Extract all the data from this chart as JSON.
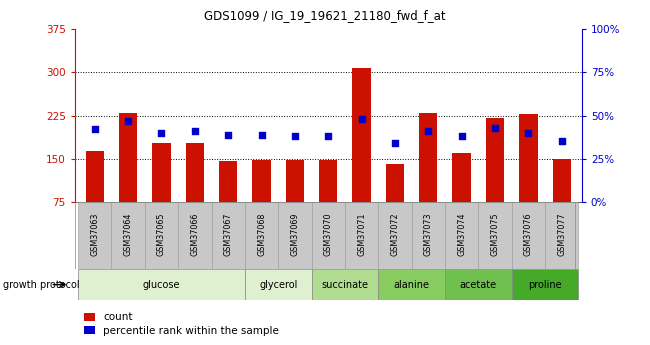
{
  "title": "GDS1099 / IG_19_19621_21180_fwd_f_at",
  "samples": [
    "GSM37063",
    "GSM37064",
    "GSM37065",
    "GSM37066",
    "GSM37067",
    "GSM37068",
    "GSM37069",
    "GSM37070",
    "GSM37071",
    "GSM37072",
    "GSM37073",
    "GSM37074",
    "GSM37075",
    "GSM37076",
    "GSM37077"
  ],
  "count_values": [
    163,
    230,
    178,
    178,
    146,
    147,
    148,
    147,
    307,
    141,
    230,
    160,
    220,
    228,
    150
  ],
  "percentile_values": [
    42,
    47,
    40,
    41,
    39,
    39,
    38,
    38,
    48,
    34,
    41,
    38,
    43,
    40,
    35
  ],
  "ylim_left": [
    75,
    375
  ],
  "ylim_right": [
    0,
    100
  ],
  "yticks_left": [
    75,
    150,
    225,
    300,
    375
  ],
  "yticks_right": [
    0,
    25,
    50,
    75,
    100
  ],
  "ytick_labels_left": [
    "75",
    "150",
    "225",
    "300",
    "375"
  ],
  "ytick_labels_right": [
    "0%",
    "25%",
    "50%",
    "75%",
    "100%"
  ],
  "group_defs": [
    {
      "label": "glucose",
      "indices": [
        0,
        1,
        2,
        3,
        4
      ],
      "color": "#dff0d0"
    },
    {
      "label": "glycerol",
      "indices": [
        5,
        6
      ],
      "color": "#dff0d0"
    },
    {
      "label": "succinate",
      "indices": [
        7,
        8
      ],
      "color": "#b0dc90"
    },
    {
      "label": "alanine",
      "indices": [
        9,
        10
      ],
      "color": "#88cc60"
    },
    {
      "label": "acetate",
      "indices": [
        11,
        12
      ],
      "color": "#70c050"
    },
    {
      "label": "proline",
      "indices": [
        13,
        14
      ],
      "color": "#44aa28"
    }
  ],
  "bar_color": "#cc1100",
  "dot_color": "#0000cc",
  "bar_width": 0.55,
  "sample_band_color": "#c8c8c8",
  "legend_red_label": "count",
  "legend_blue_label": "percentile rank within the sample",
  "growth_protocol_label": "growth protocol"
}
